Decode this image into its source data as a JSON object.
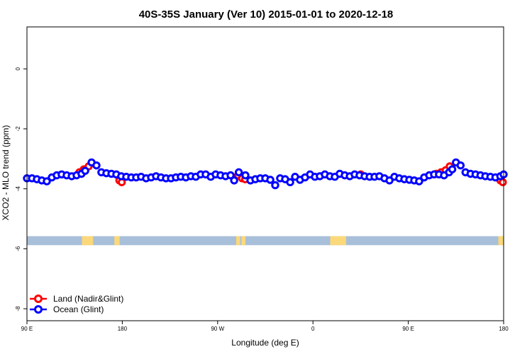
{
  "chart_data": {
    "type": "scatter",
    "title": "40S-35S January (Ver 10)   2015-01-01 to 2020-12-18",
    "xlabel": "Longitude (deg E)",
    "ylabel": "XCO2 - MLO trend (ppm)",
    "xlim": [
      90,
      450
    ],
    "ylim": [
      -8.4,
      1.4
    ],
    "x_ticks": [
      {
        "value": 90,
        "label": "90 E"
      },
      {
        "value": 162,
        "label": "180"
      },
      {
        "value": 234,
        "label": "90 W"
      },
      {
        "value": 306,
        "label": "0"
      },
      {
        "value": 378,
        "label": "90 E"
      },
      {
        "value": 450,
        "label": "180"
      }
    ],
    "y_ticks": [
      0,
      -2,
      -4,
      -6,
      -8
    ],
    "legend": {
      "placement": "bottom-left",
      "entries": [
        {
          "label": "Land (Nadir&Glint)",
          "color": "#ff0000"
        },
        {
          "label": "Ocean (Glint)",
          "color": "#0000ff"
        }
      ]
    },
    "land_ocean_strip": {
      "y_range": [
        -5.88,
        -5.58
      ],
      "ocean_color": "#a8bfd9",
      "land_color": "#fbd87a",
      "land_x_ranges": [
        [
          131.5,
          140
        ],
        [
          156,
          160
        ],
        [
          248,
          251
        ],
        [
          252,
          255
        ],
        [
          319,
          331
        ],
        [
          446,
          450
        ]
      ]
    },
    "series": [
      {
        "name": "Land (Nadir&Glint)",
        "color": "#ff0000",
        "points": [
          [
            129.6,
            -3.45
          ],
          [
            132.9,
            -3.35
          ],
          [
            136.6,
            -3.25
          ],
          [
            159.8,
            -3.72
          ],
          [
            161.6,
            -3.78
          ],
          [
            249.4,
            -3.55
          ],
          [
            252.5,
            -3.65
          ],
          [
            254.8,
            -3.68
          ],
          [
            342.1,
            -3.52
          ],
          [
            399.2,
            -3.5
          ],
          [
            402.7,
            -3.45
          ],
          [
            406.2,
            -3.38
          ],
          [
            409.3,
            -3.25
          ],
          [
            447.6,
            -3.72
          ],
          [
            449.4,
            -3.78
          ]
        ]
      },
      {
        "name": "Ocean (Glint)",
        "color": "#0000ff",
        "points": [
          [
            90.0,
            -3.65
          ],
          [
            93.8,
            -3.65
          ],
          [
            97.5,
            -3.68
          ],
          [
            101.2,
            -3.72
          ],
          [
            105.0,
            -3.75
          ],
          [
            108.8,
            -3.62
          ],
          [
            112.5,
            -3.55
          ],
          [
            116.2,
            -3.52
          ],
          [
            120.0,
            -3.55
          ],
          [
            123.8,
            -3.58
          ],
          [
            127.5,
            -3.55
          ],
          [
            131.2,
            -3.5
          ],
          [
            134.0,
            -3.4
          ],
          [
            138.8,
            -3.12
          ],
          [
            142.5,
            -3.22
          ],
          [
            146.2,
            -3.45
          ],
          [
            150.0,
            -3.48
          ],
          [
            153.8,
            -3.5
          ],
          [
            157.5,
            -3.52
          ],
          [
            161.2,
            -3.58
          ],
          [
            165.0,
            -3.6
          ],
          [
            168.8,
            -3.62
          ],
          [
            172.5,
            -3.62
          ],
          [
            176.2,
            -3.6
          ],
          [
            180.0,
            -3.65
          ],
          [
            183.8,
            -3.62
          ],
          [
            187.5,
            -3.58
          ],
          [
            191.2,
            -3.62
          ],
          [
            195.0,
            -3.65
          ],
          [
            198.8,
            -3.65
          ],
          [
            202.5,
            -3.62
          ],
          [
            206.2,
            -3.6
          ],
          [
            210.0,
            -3.62
          ],
          [
            213.8,
            -3.58
          ],
          [
            217.5,
            -3.6
          ],
          [
            221.2,
            -3.52
          ],
          [
            225.0,
            -3.52
          ],
          [
            228.8,
            -3.6
          ],
          [
            232.5,
            -3.52
          ],
          [
            236.2,
            -3.55
          ],
          [
            240.0,
            -3.58
          ],
          [
            243.8,
            -3.55
          ],
          [
            246.5,
            -3.72
          ],
          [
            250.0,
            -3.45
          ],
          [
            255.0,
            -3.55
          ],
          [
            258.8,
            -3.72
          ],
          [
            262.5,
            -3.68
          ],
          [
            266.2,
            -3.65
          ],
          [
            270.0,
            -3.65
          ],
          [
            273.8,
            -3.7
          ],
          [
            277.5,
            -3.88
          ],
          [
            281.2,
            -3.65
          ],
          [
            285.0,
            -3.68
          ],
          [
            288.8,
            -3.78
          ],
          [
            292.5,
            -3.6
          ],
          [
            296.2,
            -3.7
          ],
          [
            300.0,
            -3.62
          ],
          [
            303.8,
            -3.52
          ],
          [
            307.5,
            -3.6
          ],
          [
            311.2,
            -3.58
          ],
          [
            315.0,
            -3.52
          ],
          [
            318.8,
            -3.58
          ],
          [
            322.5,
            -3.6
          ],
          [
            326.2,
            -3.5
          ],
          [
            330.0,
            -3.55
          ],
          [
            333.8,
            -3.58
          ],
          [
            337.5,
            -3.52
          ],
          [
            341.2,
            -3.55
          ],
          [
            345.0,
            -3.58
          ],
          [
            348.8,
            -3.6
          ],
          [
            352.5,
            -3.6
          ],
          [
            356.2,
            -3.58
          ],
          [
            360.0,
            -3.65
          ],
          [
            363.8,
            -3.72
          ],
          [
            367.5,
            -3.6
          ],
          [
            371.2,
            -3.65
          ],
          [
            375.0,
            -3.68
          ],
          [
            378.8,
            -3.7
          ],
          [
            382.5,
            -3.72
          ],
          [
            386.2,
            -3.75
          ],
          [
            390.0,
            -3.62
          ],
          [
            393.8,
            -3.55
          ],
          [
            397.5,
            -3.52
          ],
          [
            401.2,
            -3.52
          ],
          [
            405.0,
            -3.55
          ],
          [
            408.8,
            -3.45
          ],
          [
            411.2,
            -3.35
          ],
          [
            414.0,
            -3.12
          ],
          [
            417.5,
            -3.22
          ],
          [
            421.2,
            -3.45
          ],
          [
            425.0,
            -3.5
          ],
          [
            428.8,
            -3.52
          ],
          [
            432.5,
            -3.55
          ],
          [
            436.2,
            -3.58
          ],
          [
            440.0,
            -3.6
          ],
          [
            443.8,
            -3.62
          ],
          [
            447.5,
            -3.58
          ],
          [
            450.0,
            -3.52
          ]
        ]
      }
    ]
  }
}
